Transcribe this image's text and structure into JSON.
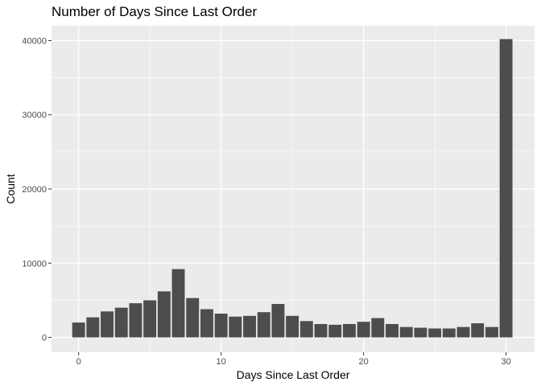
{
  "chart_data": {
    "type": "bar",
    "title": "Number of Days Since Last Order",
    "xlabel": "Days Since Last Order",
    "ylabel": "Count",
    "x": [
      0,
      1,
      2,
      3,
      4,
      5,
      6,
      7,
      8,
      9,
      10,
      11,
      12,
      13,
      14,
      15,
      16,
      17,
      18,
      19,
      20,
      21,
      22,
      23,
      24,
      25,
      26,
      27,
      28,
      29,
      30
    ],
    "values": [
      2000,
      2700,
      3500,
      4000,
      4600,
      5000,
      6200,
      9200,
      5300,
      3800,
      3200,
      2800,
      2900,
      3400,
      4500,
      2900,
      2200,
      1800,
      1700,
      1800,
      2100,
      2600,
      1800,
      1400,
      1300,
      1200,
      1200,
      1400,
      1900,
      1400,
      40200
    ],
    "xlim": [
      -1.9,
      32.0
    ],
    "ylim": [
      -2000,
      42000
    ],
    "xticks": [
      0,
      10,
      20,
      30
    ],
    "yticks": [
      0,
      10000,
      20000,
      30000,
      40000
    ],
    "grid": true,
    "legend": "none",
    "colors": {
      "bar": "#4d4d4d",
      "panel": "#ebebeb",
      "grid": "#ffffff"
    }
  }
}
